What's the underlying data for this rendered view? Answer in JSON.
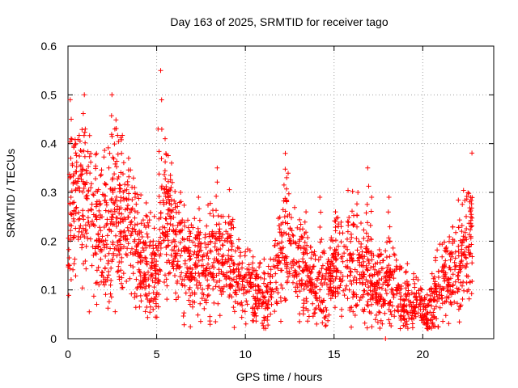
{
  "chart_data": {
    "type": "scatter",
    "title": "Day 163 of 2025, SRMTID for receiver tago",
    "xlabel": "GPS time / hours",
    "ylabel": "SRMTID / TECUs",
    "xlim": [
      0,
      24
    ],
    "ylim": [
      0,
      0.6
    ],
    "xticks": [
      0,
      5,
      10,
      15,
      20
    ],
    "xtick_labels": [
      "0",
      "5",
      "10",
      "15",
      "20"
    ],
    "yticks": [
      0,
      0.1,
      0.2,
      0.3,
      0.4,
      0.5,
      0.6
    ],
    "ytick_labels": [
      "0",
      "0.1",
      "0.2",
      "0.3",
      "0.4",
      "0.5",
      "0.6"
    ],
    "grid": true,
    "marker": "plus",
    "series_color": "#ff0000",
    "trend": [
      [
        0.0,
        0.22
      ],
      [
        0.2,
        0.26
      ],
      [
        0.5,
        0.29
      ],
      [
        0.9,
        0.27
      ],
      [
        1.3,
        0.23
      ],
      [
        1.8,
        0.22
      ],
      [
        2.3,
        0.24
      ],
      [
        2.8,
        0.25
      ],
      [
        3.2,
        0.23
      ],
      [
        3.6,
        0.22
      ],
      [
        4.0,
        0.19
      ],
      [
        4.3,
        0.16
      ],
      [
        4.7,
        0.15
      ],
      [
        5.0,
        0.13
      ],
      [
        5.3,
        0.2
      ],
      [
        5.6,
        0.22
      ],
      [
        6.0,
        0.2
      ],
      [
        6.5,
        0.16
      ],
      [
        7.0,
        0.14
      ],
      [
        7.5,
        0.15
      ],
      [
        8.0,
        0.16
      ],
      [
        8.5,
        0.18
      ],
      [
        9.0,
        0.17
      ],
      [
        9.5,
        0.13
      ],
      [
        10.0,
        0.1
      ],
      [
        10.5,
        0.09
      ],
      [
        11.0,
        0.08
      ],
      [
        11.5,
        0.1
      ],
      [
        12.0,
        0.17
      ],
      [
        12.4,
        0.2
      ],
      [
        12.8,
        0.16
      ],
      [
        13.2,
        0.14
      ],
      [
        13.6,
        0.13
      ],
      [
        14.0,
        0.11
      ],
      [
        14.5,
        0.1
      ],
      [
        15.0,
        0.14
      ],
      [
        15.5,
        0.16
      ],
      [
        16.0,
        0.17
      ],
      [
        16.5,
        0.15
      ],
      [
        17.0,
        0.12
      ],
      [
        17.6,
        0.1
      ],
      [
        18.0,
        0.11
      ],
      [
        18.5,
        0.1
      ],
      [
        19.0,
        0.08
      ],
      [
        19.5,
        0.07
      ],
      [
        20.0,
        0.07
      ],
      [
        20.3,
        0.05
      ],
      [
        20.6,
        0.08
      ],
      [
        21.0,
        0.11
      ],
      [
        21.5,
        0.13
      ],
      [
        22.0,
        0.15
      ],
      [
        22.4,
        0.18
      ],
      [
        22.8,
        0.22
      ]
    ],
    "peaks": [
      [
        0.15,
        0.49
      ],
      [
        0.45,
        0.4
      ],
      [
        0.9,
        0.5
      ],
      [
        1.0,
        0.43
      ],
      [
        1.6,
        0.38
      ],
      [
        2.5,
        0.5
      ],
      [
        2.6,
        0.43
      ],
      [
        3.4,
        0.37
      ],
      [
        3.8,
        0.29
      ],
      [
        5.1,
        0.43
      ],
      [
        5.25,
        0.55
      ],
      [
        5.5,
        0.41
      ],
      [
        5.8,
        0.36
      ],
      [
        6.3,
        0.3
      ],
      [
        7.4,
        0.29
      ],
      [
        8.4,
        0.35
      ],
      [
        9.2,
        0.24
      ],
      [
        12.2,
        0.38
      ],
      [
        12.3,
        0.33
      ],
      [
        13.4,
        0.26
      ],
      [
        14.2,
        0.29
      ],
      [
        15.1,
        0.26
      ],
      [
        16.3,
        0.3
      ],
      [
        16.9,
        0.35
      ],
      [
        17.1,
        0.29
      ],
      [
        18.1,
        0.29
      ],
      [
        22.7,
        0.29
      ]
    ],
    "low_points": [
      [
        1.2,
        0.055
      ],
      [
        4.8,
        0.06
      ],
      [
        17.9,
        0.0
      ],
      [
        20.3,
        0.02
      ]
    ]
  }
}
